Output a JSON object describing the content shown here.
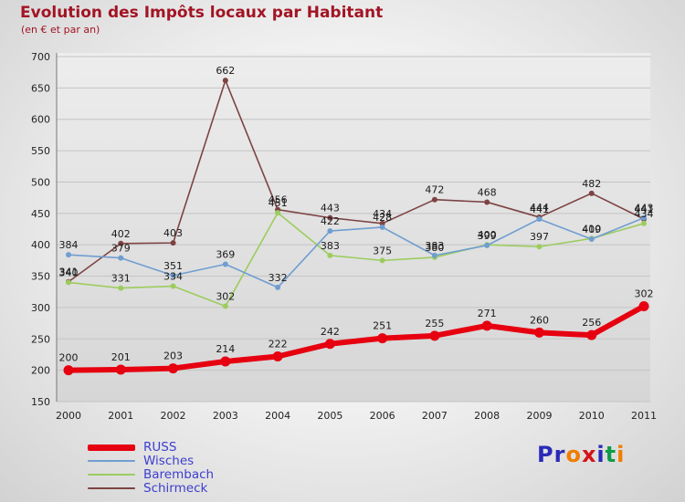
{
  "chart_data": {
    "type": "line",
    "title": "Evolution des Impôts locaux par Habitant",
    "subtitle": "(en € et par an)",
    "x": [
      2000,
      2001,
      2002,
      2003,
      2004,
      2005,
      2006,
      2007,
      2008,
      2009,
      2010,
      2011
    ],
    "ylim": [
      150,
      700
    ],
    "ytick_step": 50,
    "grid": true,
    "legend_position": "bottom-left",
    "label_color": "#1a1a1a",
    "series": [
      {
        "name": "RUSS",
        "color": "#e60010",
        "line_width": 6,
        "point_radius": 5.5,
        "values": [
          200,
          201,
          203,
          214,
          222,
          242,
          251,
          255,
          271,
          260,
          256,
          302
        ]
      },
      {
        "name": "Wisches",
        "color": "#6f9ed0",
        "line_width": 1.6,
        "point_radius": 3,
        "values": [
          384,
          379,
          351,
          369,
          332,
          422,
          428,
          383,
          399,
          441,
          409,
          443
        ]
      },
      {
        "name": "Barembach",
        "color": "#9ccc5e",
        "line_width": 1.6,
        "point_radius": 3,
        "values": [
          340,
          331,
          334,
          302,
          451,
          383,
          375,
          380,
          400,
          397,
          410,
          434
        ]
      },
      {
        "name": "Schirmeck",
        "color": "#7d4343",
        "line_width": 1.6,
        "point_radius": 3,
        "values": [
          341,
          402,
          403,
          662,
          456,
          443,
          434,
          472,
          468,
          444,
          482,
          441
        ]
      }
    ]
  },
  "legend": {
    "text_color": "#3d3dcf"
  },
  "logo": {
    "text": "Proxiti",
    "letters": [
      {
        "ch": "P",
        "color": "#2a2ab8"
      },
      {
        "ch": "r",
        "color": "#2a2ab8"
      },
      {
        "ch": "o",
        "color": "#f07d00"
      },
      {
        "ch": "x",
        "color": "#d51317"
      },
      {
        "ch": "i",
        "color": "#2a2ab8"
      },
      {
        "ch": "t",
        "color": "#0f9b4a"
      },
      {
        "ch": "i",
        "color": "#f07d00"
      }
    ]
  }
}
